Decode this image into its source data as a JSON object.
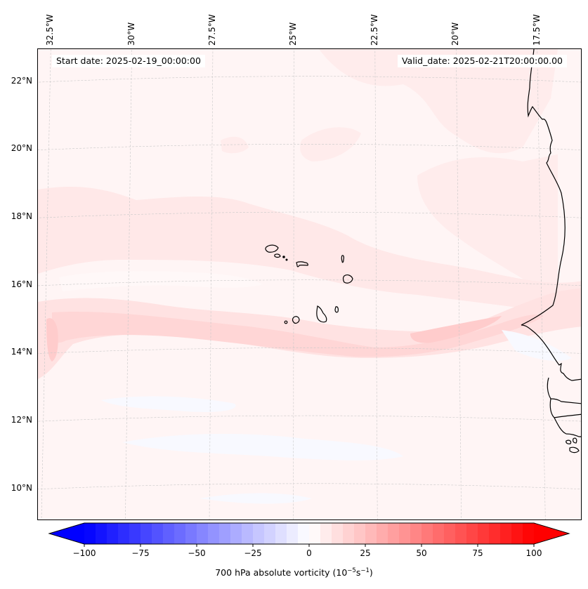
{
  "figure": {
    "start_date_label": "Start date: 2025-02-19_00:00:00",
    "valid_date_label": "Valid_date: 2025-02-21T20:00:00.00"
  },
  "chart_data": {
    "type": "heatmap",
    "title": "",
    "variable": "700 hPa absolute vorticity",
    "units": "10^-5 s^-1",
    "colorbar": {
      "label_prefix": "700 hPa absolute vorticity (10",
      "label_exp1": "−5",
      "label_mid": "s",
      "label_exp2": "−1",
      "label_suffix": ")",
      "colormap": "bwr",
      "range": [
        -100,
        100
      ],
      "extend": "both",
      "n_levels": 40,
      "min_color": "#0000ff",
      "mid_color": "#ffffff",
      "max_color": "#ff0000",
      "ticks": [
        -100,
        -75,
        -50,
        -25,
        0,
        25,
        50,
        75,
        100
      ],
      "tick_labels": [
        "−100",
        "−75",
        "−50",
        "−25",
        "0",
        "25",
        "50",
        "75",
        "100"
      ]
    },
    "lon_axis": {
      "ticks": [
        -32.5,
        -30,
        -27.5,
        -25,
        -22.5,
        -20,
        -17.5
      ],
      "tick_labels": [
        "32.5°W",
        "30°W",
        "27.5°W",
        "25°W",
        "22.5°W",
        "20°W",
        "17.5°W"
      ],
      "placement": "top"
    },
    "lat_axis": {
      "ticks": [
        22,
        20,
        18,
        16,
        14,
        12,
        10
      ],
      "tick_labels": [
        "22°N",
        "20°N",
        "18°N",
        "16°N",
        "14°N",
        "12°N",
        "10°N"
      ],
      "placement": "left"
    },
    "extent": {
      "lon": [
        -32.6,
        -16.4
      ],
      "lat": [
        8.9,
        22.8
      ]
    },
    "gridlines": true,
    "features": [
      {
        "name": "Cape Verde Islands",
        "type": "coastline"
      },
      {
        "name": "West African coast (Mauritania, Senegal, Gambia, Guinea-Bissau)",
        "type": "coastline"
      }
    ],
    "field_description": [
      {
        "region": "background ocean",
        "value_range": [
          0,
          5
        ]
      },
      {
        "region": "zonal band ~14-15.5°N from 33°W to 17°W",
        "value_range": [
          5,
          15
        ]
      },
      {
        "region": "maximum near 14.5°N 32°W and 14.5°N 19°W",
        "value_range": [
          10,
          15
        ]
      },
      {
        "region": "band ~16.5-18°N west of 24°W",
        "value_range": [
          5,
          10
        ]
      },
      {
        "region": "south of 13°N patches",
        "value_range": [
          -5,
          0
        ]
      }
    ]
  }
}
